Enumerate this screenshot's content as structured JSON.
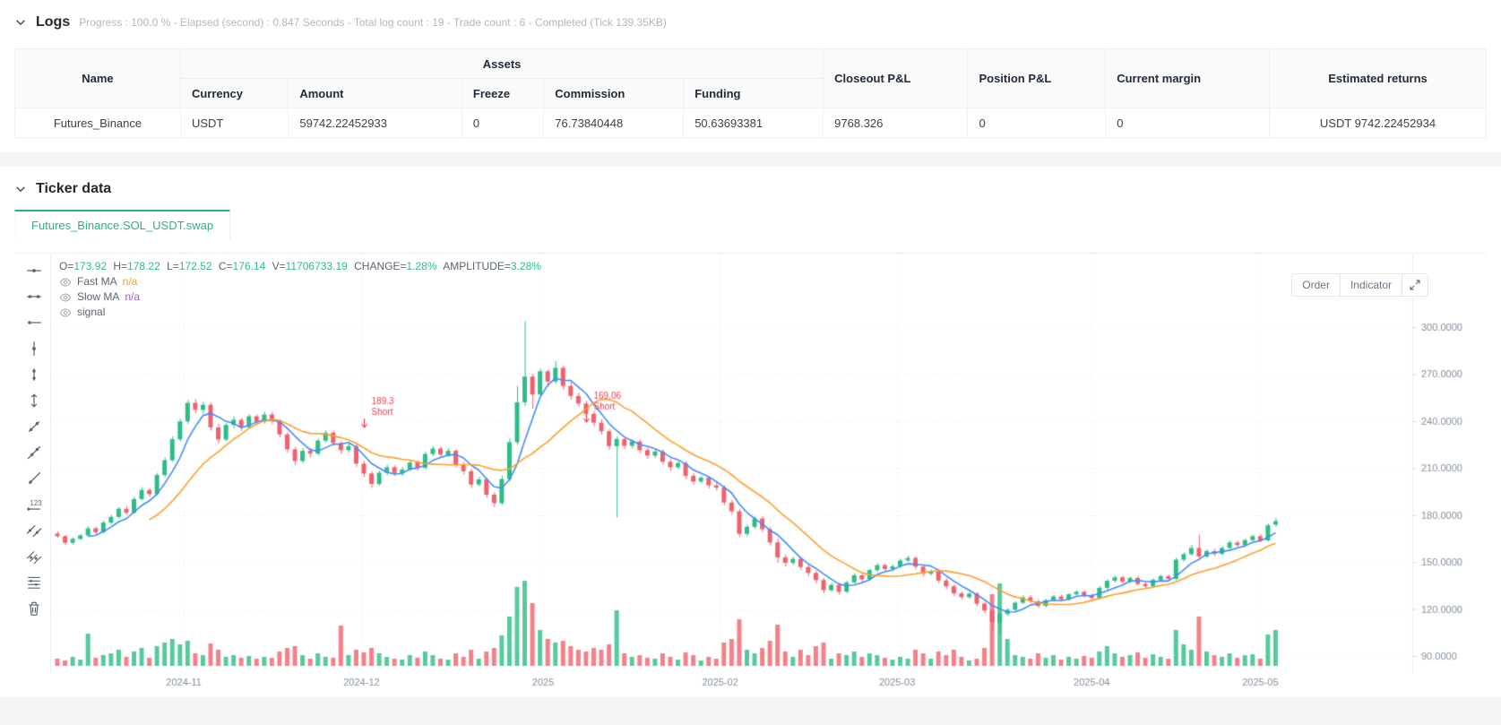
{
  "logs": {
    "title": "Logs",
    "meta": "Progress : 100.0 % - Elapsed (second) : 0.847  Seconds - Total log count : 19 - Trade count : 6 - Completed (Tick 139.35KB)"
  },
  "table": {
    "headers": {
      "name": "Name",
      "assets_group": "Assets",
      "assets_sub": [
        "Currency",
        "Amount",
        "Freeze",
        "Commission",
        "Funding"
      ],
      "closeout_pnl": "Closeout P&L",
      "position_pnl": "Position P&L",
      "current_margin": "Current margin",
      "estimated_returns": "Estimated returns"
    },
    "row": {
      "name": "Futures_Binance",
      "currency": "USDT",
      "amount": "59742.22452933",
      "freeze": "0",
      "commission": "76.73840448",
      "funding": "50.63693381",
      "closeout_pnl": "9768.326",
      "position_pnl": "0",
      "current_margin": "0",
      "estimated_returns": "USDT 9742.22452934"
    }
  },
  "ticker": {
    "title": "Ticker data",
    "tab": "Futures_Binance.SOL_USDT.swap",
    "buttons": {
      "order": "Order",
      "indicator": "Indicator"
    },
    "indicators": [
      {
        "label": "Fast MA",
        "value": "n/a",
        "value_color": "#f99e34"
      },
      {
        "label": "Slow MA",
        "value": "n/a",
        "value_color": "#9c5fd4"
      },
      {
        "label": "signal",
        "value": "",
        "value_color": "#5b6472"
      }
    ]
  },
  "chart_data": {
    "type": "candlestick",
    "symbol": "Futures_Binance.SOL_USDT.swap",
    "ohlc_legend": [
      {
        "label": "O=",
        "value": "173.92"
      },
      {
        "label": "H=",
        "value": "178.22"
      },
      {
        "label": "L=",
        "value": "172.52"
      },
      {
        "label": "C=",
        "value": "176.14"
      },
      {
        "label": "V=",
        "value": "11706733.19"
      },
      {
        "label": "CHANGE=",
        "value": "1.28%"
      },
      {
        "label": "AMPLITUDE=",
        "value": "3.28%"
      }
    ],
    "y_ticks": [
      "300.0000",
      "270.0000",
      "240.0000",
      "210.0000",
      "180.0000",
      "150.0000",
      "120.0000",
      "90.0000"
    ],
    "x_labels": [
      {
        "label": "2024-11",
        "i": 16.5
      },
      {
        "label": "2024-12",
        "i": 39.7
      },
      {
        "label": "2025",
        "i": 63.4
      },
      {
        "label": "2025-02",
        "i": 86.5
      },
      {
        "label": "2025-03",
        "i": 109.6
      },
      {
        "label": "2025-04",
        "i": 135
      },
      {
        "label": "2025-05",
        "i": 157
      }
    ],
    "markers": [
      {
        "price_label": "189.3",
        "side": "Short",
        "i": 41,
        "y": 168
      },
      {
        "price_label": "169.06",
        "side": "Short",
        "i": 70,
        "y": 162
      }
    ],
    "colors": {
      "up": "#2dbd85",
      "down": "#f0616d",
      "fast_ma": "#3f8cff",
      "slow_ma": "#ff9e2c",
      "marker": "#f23c4f",
      "grid": "#e8e9ee",
      "axis_text": "#848e9c",
      "accent_green": "#2bb379"
    },
    "ma": {
      "fast_period": 5,
      "slow_period": 13
    },
    "candles": [
      [
        168.2,
        169.6,
        165.4,
        166.5
      ],
      [
        166.5,
        167.3,
        160.8,
        162.3
      ],
      [
        162.3,
        165.9,
        161.2,
        164.8
      ],
      [
        164.8,
        168.1,
        163.9,
        167.0
      ],
      [
        167.0,
        172.8,
        166.2,
        171.5
      ],
      [
        171.5,
        172.6,
        167.8,
        169.0
      ],
      [
        169.0,
        176.4,
        168.3,
        175.2
      ],
      [
        175.2,
        180.1,
        174.0,
        178.8
      ],
      [
        178.8,
        185.2,
        177.6,
        184.0
      ],
      [
        184.0,
        185.8,
        179.9,
        181.5
      ],
      [
        181.5,
        191.6,
        180.7,
        190.2
      ],
      [
        190.2,
        197.8,
        189.3,
        196.0
      ],
      [
        196.0,
        197.2,
        191.5,
        193.4
      ],
      [
        193.4,
        207.0,
        192.6,
        205.6
      ],
      [
        205.6,
        216.8,
        204.1,
        215.0
      ],
      [
        215.0,
        230.2,
        213.8,
        228.4
      ],
      [
        228.4,
        241.5,
        226.9,
        239.8
      ],
      [
        239.8,
        253.4,
        238.2,
        251.6
      ],
      [
        251.6,
        254.0,
        245.1,
        247.2
      ],
      [
        247.2,
        252.3,
        244.6,
        250.4
      ],
      [
        250.4,
        251.8,
        233.9,
        236.0
      ],
      [
        236.0,
        238.4,
        225.7,
        228.2
      ],
      [
        228.2,
        238.9,
        227.1,
        237.5
      ],
      [
        237.5,
        243.0,
        235.4,
        240.8
      ],
      [
        240.8,
        242.1,
        233.8,
        236.2
      ],
      [
        236.2,
        244.6,
        235.0,
        243.0
      ],
      [
        243.0,
        244.2,
        237.3,
        239.5
      ],
      [
        239.5,
        246.0,
        238.4,
        244.2
      ],
      [
        244.2,
        245.9,
        238.1,
        240.0
      ],
      [
        240.0,
        241.2,
        229.6,
        231.5
      ],
      [
        231.5,
        233.0,
        219.8,
        222.0
      ],
      [
        222.0,
        223.5,
        211.9,
        214.5
      ],
      [
        214.5,
        222.8,
        213.2,
        221.0
      ],
      [
        221.0,
        222.9,
        216.8,
        219.2
      ],
      [
        219.2,
        228.6,
        218.0,
        227.5
      ],
      [
        227.5,
        234.1,
        226.2,
        232.6
      ],
      [
        232.6,
        233.8,
        224.3,
        226.0
      ],
      [
        226.0,
        227.5,
        218.9,
        221.4
      ],
      [
        221.4,
        225.6,
        219.8,
        224.0
      ],
      [
        224.0,
        225.1,
        210.7,
        212.8
      ],
      [
        212.8,
        214.6,
        204.2,
        206.5
      ],
      [
        206.5,
        208.0,
        197.4,
        199.8
      ],
      [
        199.8,
        208.4,
        198.6,
        207.0
      ],
      [
        207.0,
        212.2,
        205.4,
        210.5
      ],
      [
        210.5,
        211.8,
        204.9,
        206.8
      ],
      [
        206.8,
        210.6,
        205.0,
        209.0
      ],
      [
        209.0,
        215.2,
        207.8,
        213.5
      ],
      [
        213.5,
        214.9,
        208.3,
        210.2
      ],
      [
        210.2,
        220.4,
        209.1,
        219.0
      ],
      [
        219.0,
        224.0,
        217.6,
        222.4
      ],
      [
        222.4,
        223.8,
        216.5,
        218.6
      ],
      [
        218.6,
        222.6,
        217.0,
        221.0
      ],
      [
        221.0,
        222.2,
        210.4,
        212.4
      ],
      [
        212.4,
        214.0,
        205.8,
        208.0
      ],
      [
        208.0,
        209.4,
        197.2,
        199.5
      ],
      [
        199.5,
        204.4,
        198.1,
        202.8
      ],
      [
        202.8,
        203.9,
        191.0,
        193.0
      ],
      [
        193.0,
        194.5,
        184.8,
        187.6
      ],
      [
        187.6,
        205.2,
        186.4,
        203.0
      ],
      [
        203.0,
        228.9,
        201.5,
        226.5
      ],
      [
        226.5,
        262.3,
        224.8,
        252.0
      ],
      [
        252.0,
        303.8,
        249.6,
        268.4
      ],
      [
        268.4,
        270.1,
        247.9,
        257.0
      ],
      [
        257.0,
        273.5,
        255.2,
        271.8
      ],
      [
        271.8,
        273.0,
        261.8,
        265.2
      ],
      [
        265.2,
        278.3,
        263.7,
        274.0
      ],
      [
        274.0,
        275.6,
        259.9,
        262.5
      ],
      [
        262.5,
        264.8,
        253.6,
        256.0
      ],
      [
        256.0,
        258.2,
        248.9,
        251.2
      ],
      [
        251.2,
        253.0,
        242.8,
        244.6
      ],
      [
        244.6,
        246.4,
        236.7,
        239.0
      ],
      [
        239.0,
        241.2,
        231.5,
        233.5
      ],
      [
        233.5,
        235.0,
        221.8,
        224.0
      ],
      [
        224.0,
        230.4,
        178.5,
        228.5
      ],
      [
        228.5,
        229.8,
        222.1,
        224.2
      ],
      [
        224.2,
        228.4,
        222.6,
        227.0
      ],
      [
        227.0,
        228.2,
        219.6,
        221.5
      ],
      [
        221.5,
        223.0,
        215.9,
        218.0
      ],
      [
        218.0,
        221.8,
        216.4,
        220.6
      ],
      [
        220.6,
        221.9,
        212.2,
        214.0
      ],
      [
        214.0,
        215.5,
        208.4,
        210.5
      ],
      [
        210.5,
        214.4,
        209.2,
        213.2
      ],
      [
        213.2,
        214.5,
        203.1,
        205.0
      ],
      [
        205.0,
        206.6,
        199.3,
        201.4
      ],
      [
        201.4,
        205.0,
        200.2,
        203.8
      ],
      [
        203.8,
        204.9,
        197.0,
        199.0
      ],
      [
        199.0,
        201.6,
        195.7,
        197.5
      ],
      [
        197.5,
        198.8,
        186.1,
        188.0
      ],
      [
        188.0,
        189.6,
        180.2,
        182.4
      ],
      [
        182.4,
        183.8,
        165.9,
        168.0
      ],
      [
        168.0,
        173.9,
        166.5,
        172.5
      ],
      [
        172.5,
        179.0,
        171.2,
        177.8
      ],
      [
        177.8,
        179.2,
        169.0,
        171.0
      ],
      [
        171.0,
        172.6,
        160.4,
        162.5
      ],
      [
        162.5,
        165.0,
        149.5,
        153.0
      ],
      [
        153.0,
        154.8,
        147.2,
        149.5
      ],
      [
        149.5,
        153.4,
        148.0,
        152.0
      ],
      [
        152.0,
        153.2,
        144.9,
        146.8
      ],
      [
        146.8,
        148.4,
        141.1,
        143.0
      ],
      [
        143.0,
        144.6,
        136.3,
        138.5
      ],
      [
        138.5,
        139.8,
        130.2,
        132.0
      ],
      [
        132.0,
        136.6,
        131.0,
        135.4
      ],
      [
        135.4,
        136.6,
        129.2,
        131.0
      ],
      [
        131.0,
        138.2,
        130.1,
        137.0
      ],
      [
        137.0,
        142.8,
        136.0,
        141.5
      ],
      [
        141.5,
        142.6,
        137.2,
        139.0
      ],
      [
        139.0,
        145.9,
        138.1,
        144.8
      ],
      [
        144.8,
        149.2,
        143.6,
        148.0
      ],
      [
        148.0,
        149.1,
        143.8,
        145.5
      ],
      [
        145.5,
        148.4,
        144.2,
        147.2
      ],
      [
        147.2,
        152.2,
        146.0,
        151.0
      ],
      [
        151.0,
        154.0,
        150.1,
        152.6
      ],
      [
        152.6,
        153.8,
        145.4,
        147.0
      ],
      [
        147.0,
        148.5,
        140.8,
        142.5
      ],
      [
        142.5,
        145.2,
        141.3,
        144.0
      ],
      [
        144.0,
        145.2,
        136.6,
        138.2
      ],
      [
        138.2,
        139.6,
        132.8,
        134.5
      ],
      [
        134.5,
        135.8,
        128.4,
        130.0
      ],
      [
        130.0,
        131.4,
        125.9,
        127.6
      ],
      [
        127.6,
        131.0,
        126.5,
        129.8
      ],
      [
        129.8,
        130.9,
        121.8,
        123.5
      ],
      [
        123.5,
        124.8,
        117.2,
        119.0
      ],
      [
        119.0,
        120.2,
        106.2,
        111.5
      ],
      [
        111.5,
        118.0,
        104.8,
        116.8
      ],
      [
        116.8,
        120.6,
        115.5,
        119.5
      ],
      [
        119.5,
        125.0,
        118.6,
        124.0
      ],
      [
        124.0,
        128.6,
        123.2,
        127.5
      ],
      [
        127.5,
        128.8,
        123.6,
        124.8
      ],
      [
        124.8,
        126.0,
        120.7,
        122.0
      ],
      [
        122.0,
        126.6,
        121.1,
        125.6
      ],
      [
        125.6,
        129.2,
        124.7,
        128.0
      ],
      [
        128.0,
        129.2,
        125.0,
        126.2
      ],
      [
        126.2,
        130.4,
        125.3,
        129.4
      ],
      [
        129.4,
        132.2,
        128.3,
        131.0
      ],
      [
        131.0,
        132.2,
        127.4,
        128.5
      ],
      [
        128.5,
        129.8,
        125.6,
        127.0
      ],
      [
        127.0,
        134.6,
        126.2,
        133.5
      ],
      [
        133.5,
        139.0,
        132.4,
        138.0
      ],
      [
        138.0,
        141.4,
        137.0,
        140.2
      ],
      [
        140.2,
        141.4,
        136.2,
        137.5
      ],
      [
        137.5,
        140.8,
        136.6,
        139.8
      ],
      [
        139.8,
        141.0,
        134.9,
        136.0
      ],
      [
        136.0,
        137.4,
        133.2,
        134.5
      ],
      [
        134.5,
        139.6,
        133.7,
        138.6
      ],
      [
        138.6,
        142.0,
        137.6,
        141.0
      ],
      [
        141.0,
        142.2,
        138.0,
        139.2
      ],
      [
        139.2,
        152.8,
        138.4,
        151.5
      ],
      [
        151.5,
        156.2,
        150.3,
        155.0
      ],
      [
        155.0,
        161.0,
        154.0,
        159.0
      ],
      [
        159.0,
        167.5,
        152.2,
        153.5
      ],
      [
        153.5,
        158.1,
        152.6,
        157.0
      ],
      [
        157.0,
        158.4,
        153.9,
        155.2
      ],
      [
        155.2,
        160.0,
        154.4,
        159.0
      ],
      [
        159.0,
        163.8,
        158.2,
        162.5
      ],
      [
        162.5,
        163.6,
        159.7,
        160.8
      ],
      [
        160.8,
        165.0,
        159.9,
        164.0
      ],
      [
        164.0,
        167.6,
        163.1,
        166.5
      ],
      [
        166.5,
        167.8,
        162.7,
        163.8
      ],
      [
        163.8,
        174.6,
        163.0,
        173.5
      ],
      [
        173.9,
        178.2,
        172.5,
        176.14
      ]
    ],
    "volumes": [
      8,
      6,
      10,
      7,
      36,
      9,
      12,
      14,
      18,
      10,
      16,
      20,
      9,
      22,
      26,
      30,
      24,
      28,
      14,
      12,
      25,
      18,
      10,
      12,
      9,
      11,
      8,
      10,
      9,
      16,
      20,
      22,
      12,
      8,
      14,
      10,
      9,
      45,
      12,
      18,
      15,
      20,
      14,
      10,
      8,
      7,
      12,
      9,
      16,
      12,
      8,
      7,
      14,
      10,
      18,
      8,
      16,
      20,
      34,
      55,
      88,
      95,
      70,
      40,
      30,
      26,
      28,
      22,
      18,
      16,
      20,
      18,
      24,
      62,
      14,
      10,
      12,
      9,
      8,
      14,
      10,
      7,
      15,
      12,
      6,
      10,
      8,
      26,
      30,
      52,
      18,
      14,
      20,
      28,
      46,
      16,
      10,
      18,
      12,
      22,
      26,
      8,
      14,
      12,
      16,
      10,
      14,
      12,
      9,
      7,
      10,
      8,
      18,
      14,
      8,
      16,
      12,
      18,
      10,
      6,
      8,
      20,
      80,
      92,
      30,
      12,
      10,
      8,
      14,
      9,
      12,
      7,
      10,
      8,
      11,
      9,
      16,
      22,
      14,
      10,
      12,
      15,
      9,
      13,
      10,
      8,
      40,
      24,
      18,
      55,
      16,
      12,
      10,
      14,
      9,
      12,
      13,
      8,
      35,
      40
    ]
  }
}
